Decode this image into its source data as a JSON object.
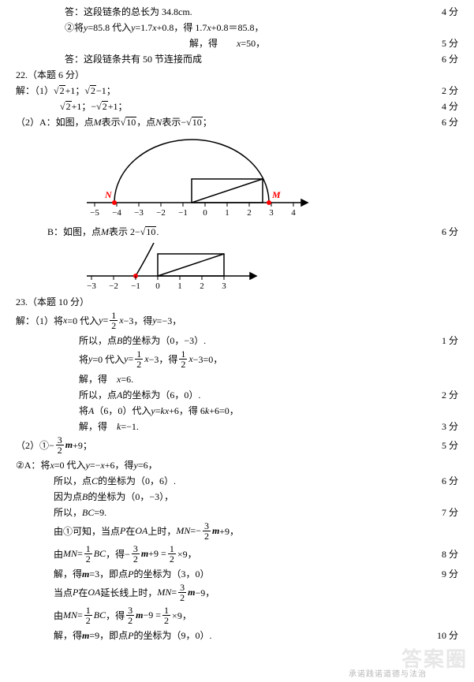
{
  "colors": {
    "text": "#000000",
    "bg": "#ffffff",
    "red": "#ff0000",
    "watermark": "#d0d0d0"
  },
  "lines": {
    "l1": "答：这段链条的总长为 34.8cm.",
    "l1s": "4 分",
    "l2a": "②将 ",
    "l2b": "=85.8 代入 ",
    "l2c": "=1.7",
    "l2d": "+0.8，得 1.7",
    "l2e": "+0.8＝85.8，",
    "l3a": "解，得　　",
    "l3b": "=50，",
    "l3s": "5 分",
    "l4": "答：这段链条共有 50 节连接而成",
    "l4s": "6 分",
    "q22": "22.（本题 6 分）",
    "l5a": "解：（1）",
    "l5b": "+1；",
    "l5c": "−1；",
    "l5s": "2 分",
    "l6a": "+1；−",
    "l6b": "+1；",
    "l6s": "4 分",
    "l7a": "（2）A：如图，点 ",
    "l7b": " 表示",
    "l7c": "，点 ",
    "l7d": " 表示−",
    "l7e": "；",
    "l7s": "6 分",
    "l8a": "B：如图，点 ",
    "l8b": " 表示 2−",
    "l8c": ".",
    "l8s": "6 分",
    "q23": "23.（本题 10 分）",
    "l9a": "解：（1）将 ",
    "l9b": "=0 代入 ",
    "l9c": "−3，得 ",
    "l9d": "=−3，",
    "l10a": "所以，点 ",
    "l10b": " 的坐标为（0，−3）.",
    "l10s": "1 分",
    "l11a": "将 ",
    "l11b": "=0 代入 ",
    "l11c": "−3，得 ",
    "l11d": "−3=0，",
    "l12a": "解，得　",
    "l12b": "=6.",
    "l13a": "所以，点 ",
    "l13b": " 的坐标为（6，0）.",
    "l13s": "2 分",
    "l14a": "将 ",
    "l14b": "（6，0）代入 ",
    "l14c": "+6，得 6",
    "l14d": "+6=0，",
    "l15a": "解，得　",
    "l15b": "=−1.",
    "l15s": "3 分",
    "l16a": "（2）①−",
    "l16b": "+9；",
    "l16s": "5 分",
    "l17a": "②A：将 ",
    "l17b": "=0 代入 ",
    "l17c": "=−",
    "l17d": "+6，得 ",
    "l17e": "=6，",
    "l18a": "所以，点 ",
    "l18b": " 的坐标为（0，6）.",
    "l18s": "6 分",
    "l19a": "因为点 ",
    "l19b": " 的坐标为（0，−3），",
    "l20a": "所以，",
    "l20b": "=9.",
    "l20s": "7 分",
    "l21a": "由①可知，当点 ",
    "l21b": " 在 ",
    "l21c": " 上时，",
    "l21d": "=−",
    "l21e": "+9，",
    "l22a": "由 ",
    "l22b": "，得−",
    "l22c": "+9 = ",
    "l22d": "×9，",
    "l22s": "8 分",
    "l23a": "解，得 ",
    "l23b": "=3，即点 ",
    "l23c": " 的坐标为（3，0）",
    "l23s": "9 分",
    "l24a": "当点 ",
    "l24b": " 在 ",
    "l24c": " 延长线上时，",
    "l24d": "−9，",
    "l25a": "由 ",
    "l25b": "，得 ",
    "l25c": "−9 = ",
    "l25d": "×9，",
    "l26a": "解，得 ",
    "l26b": "=9，即点 ",
    "l26c": " 的坐标为（9，0）.",
    "l26s": "10 分"
  },
  "vars": {
    "y": "y",
    "x": "x",
    "M": "M",
    "N": "N",
    "B": "B",
    "A": "A",
    "k": "k",
    "m": "m",
    "C": "C",
    "BC": "BC",
    "P": "P",
    "OA": "OA",
    "MN": "MN",
    "eq": "="
  },
  "sqrt": {
    "2": "2",
    "10": "10"
  },
  "frac": {
    "1": "1",
    "2": "2",
    "3": "3"
  },
  "diagram1": {
    "ticks": [
      "−5",
      "−4",
      "−3",
      "−2",
      "−1",
      "0",
      "1",
      "2",
      "3",
      "4"
    ],
    "N": "N",
    "M": "M",
    "tick_color": "#000000",
    "red": "#ff0000"
  },
  "diagram2": {
    "ticks": [
      "−3",
      "−2",
      "−1",
      "0",
      "1",
      "2",
      "3"
    ],
    "tick_color": "#000000"
  },
  "watermark": "答案圈",
  "watermark2": "承诺践诺道德与法治"
}
